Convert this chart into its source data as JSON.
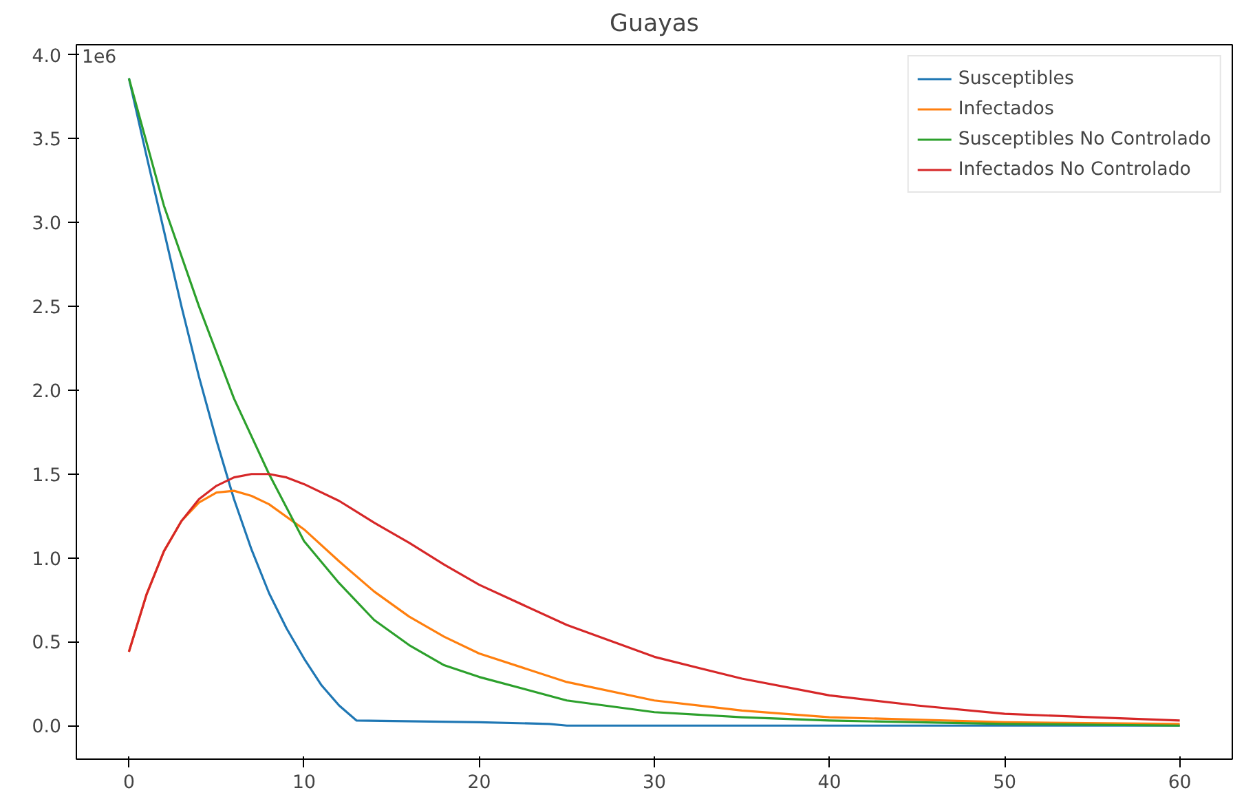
{
  "chart_data": {
    "type": "line",
    "title": "Guayas",
    "annotations": [
      "1e6"
    ],
    "xlim": [
      -3,
      63
    ],
    "xticks": [
      0,
      10,
      20,
      30,
      40,
      50,
      60
    ],
    "ylim": [
      -0.2,
      4.06
    ],
    "yticks": [
      {
        "value": 0,
        "label": "0.0"
      },
      0.5,
      {
        "value": 1,
        "label": "1.0"
      },
      1.5,
      {
        "value": 2,
        "label": "2.0"
      },
      2.5,
      {
        "value": 3,
        "label": "3.0"
      },
      3.5,
      {
        "value": 4,
        "label": "4.0"
      }
    ],
    "grid": false,
    "legend": "top right",
    "marker": "none",
    "line_style": "solid",
    "series": [
      {
        "name": "Susceptibles",
        "color": "#1f77b4",
        "x": [
          0,
          1,
          2,
          3,
          4,
          5,
          6,
          7,
          8,
          9,
          10,
          11,
          12,
          13,
          20,
          24,
          25,
          60
        ],
        "values": [
          3.86,
          3.4,
          2.95,
          2.5,
          2.08,
          1.7,
          1.35,
          1.05,
          0.79,
          0.58,
          0.4,
          0.24,
          0.12,
          0.03,
          0.02,
          0.01,
          0,
          0
        ]
      },
      {
        "name": "Infectados",
        "color": "#ff7f0e",
        "x": [
          0,
          1,
          2,
          3,
          4,
          5,
          6,
          7,
          8,
          10,
          12,
          14,
          16,
          18,
          20,
          25,
          30,
          35,
          40,
          50,
          60
        ],
        "values": [
          0.44,
          0.78,
          1.04,
          1.22,
          1.33,
          1.39,
          1.4,
          1.37,
          1.32,
          1.17,
          0.98,
          0.8,
          0.65,
          0.53,
          0.43,
          0.26,
          0.15,
          0.09,
          0.05,
          0.02,
          0.01
        ]
      },
      {
        "name": "Susceptibles No Controlado",
        "color": "#2ca02c",
        "x": [
          0,
          2,
          4,
          6,
          8,
          10,
          12,
          14,
          16,
          18,
          20,
          25,
          30,
          35,
          40,
          50,
          60
        ],
        "values": [
          3.86,
          3.1,
          2.5,
          1.95,
          1.5,
          1.1,
          0.85,
          0.63,
          0.48,
          0.36,
          0.29,
          0.15,
          0.08,
          0.05,
          0.03,
          0.01,
          0
        ]
      },
      {
        "name": "Infectados No Controlado",
        "color": "#d62728",
        "x": [
          0,
          1,
          2,
          3,
          4,
          5,
          6,
          7,
          8,
          9,
          10,
          12,
          14,
          16,
          18,
          20,
          25,
          30,
          35,
          40,
          45,
          50,
          55,
          60
        ],
        "values": [
          0.44,
          0.78,
          1.04,
          1.22,
          1.35,
          1.43,
          1.48,
          1.5,
          1.5,
          1.48,
          1.44,
          1.34,
          1.21,
          1.09,
          0.96,
          0.84,
          0.6,
          0.41,
          0.28,
          0.18,
          0.12,
          0.07,
          0.05,
          0.03
        ]
      }
    ]
  }
}
